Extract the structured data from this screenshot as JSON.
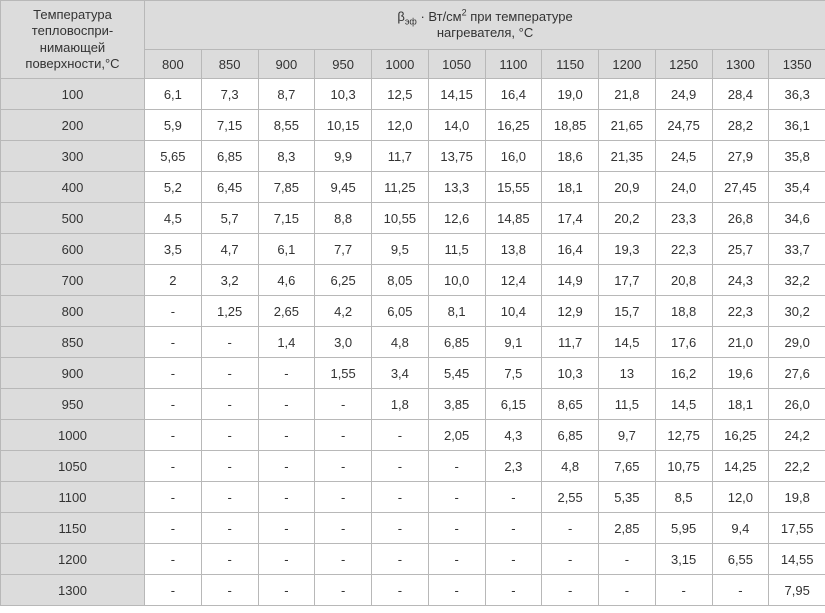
{
  "header": {
    "corner": "Температура тепловоспри-нимающей поверхности,°С",
    "span_l1": "β",
    "span_sub": "эф",
    "span_mid": " · Вт/см",
    "span_sup": "2",
    "span_l2a": " при температуре",
    "span_l2b": "нагревателя, °С"
  },
  "cols": [
    "800",
    "850",
    "900",
    "950",
    "1000",
    "1050",
    "1100",
    "1150",
    "1200",
    "1250",
    "1300",
    "1350"
  ],
  "rows": [
    {
      "t": "100",
      "v": [
        "6,1",
        "7,3",
        "8,7",
        "10,3",
        "12,5",
        "14,15",
        "16,4",
        "19,0",
        "21,8",
        "24,9",
        "28,4",
        "36,3"
      ]
    },
    {
      "t": "200",
      "v": [
        "5,9",
        "7,15",
        "8,55",
        "10,15",
        "12,0",
        "14,0",
        "16,25",
        "18,85",
        "21,65",
        "24,75",
        "28,2",
        "36,1"
      ]
    },
    {
      "t": "300",
      "v": [
        "5,65",
        "6,85",
        "8,3",
        "9,9",
        "11,7",
        "13,75",
        "16,0",
        "18,6",
        "21,35",
        "24,5",
        "27,9",
        "35,8"
      ]
    },
    {
      "t": "400",
      "v": [
        "5,2",
        "6,45",
        "7,85",
        "9,45",
        "11,25",
        "13,3",
        "15,55",
        "18,1",
        "20,9",
        "24,0",
        "27,45",
        "35,4"
      ]
    },
    {
      "t": "500",
      "v": [
        "4,5",
        "5,7",
        "7,15",
        "8,8",
        "10,55",
        "12,6",
        "14,85",
        "17,4",
        "20,2",
        "23,3",
        "26,8",
        "34,6"
      ]
    },
    {
      "t": "600",
      "v": [
        "3,5",
        "4,7",
        "6,1",
        "7,7",
        "9,5",
        "11,5",
        "13,8",
        "16,4",
        "19,3",
        "22,3",
        "25,7",
        "33,7"
      ]
    },
    {
      "t": "700",
      "v": [
        "2",
        "3,2",
        "4,6",
        "6,25",
        "8,05",
        "10,0",
        "12,4",
        "14,9",
        "17,7",
        "20,8",
        "24,3",
        "32,2"
      ]
    },
    {
      "t": "800",
      "v": [
        "-",
        "1,25",
        "2,65",
        "4,2",
        "6,05",
        "8,1",
        "10,4",
        "12,9",
        "15,7",
        "18,8",
        "22,3",
        "30,2"
      ]
    },
    {
      "t": "850",
      "v": [
        "-",
        "-",
        "1,4",
        "3,0",
        "4,8",
        "6,85",
        "9,1",
        "11,7",
        "14,5",
        "17,6",
        "21,0",
        "29,0"
      ]
    },
    {
      "t": "900",
      "v": [
        "-",
        "-",
        "-",
        "1,55",
        "3,4",
        "5,45",
        "7,5",
        "10,3",
        "13",
        "16,2",
        "19,6",
        "27,6"
      ]
    },
    {
      "t": "950",
      "v": [
        "-",
        "-",
        "-",
        "-",
        "1,8",
        "3,85",
        "6,15",
        "8,65",
        "11,5",
        "14,5",
        "18,1",
        "26,0"
      ]
    },
    {
      "t": "1000",
      "v": [
        "-",
        "-",
        "-",
        "-",
        "-",
        "2,05",
        "4,3",
        "6,85",
        "9,7",
        "12,75",
        "16,25",
        "24,2"
      ]
    },
    {
      "t": "1050",
      "v": [
        "-",
        "-",
        "-",
        "-",
        "-",
        "-",
        "2,3",
        "4,8",
        "7,65",
        "10,75",
        "14,25",
        "22,2"
      ]
    },
    {
      "t": "1100",
      "v": [
        "-",
        "-",
        "-",
        "-",
        "-",
        "-",
        "-",
        "2,55",
        "5,35",
        "8,5",
        "12,0",
        "19,8"
      ]
    },
    {
      "t": "1150",
      "v": [
        "-",
        "-",
        "-",
        "-",
        "-",
        "-",
        "-",
        "-",
        "2,85",
        "5,95",
        "9,4",
        "17,55"
      ]
    },
    {
      "t": "1200",
      "v": [
        "-",
        "-",
        "-",
        "-",
        "-",
        "-",
        "-",
        "-",
        "-",
        "3,15",
        "6,55",
        "14,55"
      ]
    },
    {
      "t": "1300",
      "v": [
        "-",
        "-",
        "-",
        "-",
        "-",
        "-",
        "-",
        "-",
        "-",
        "-",
        "-",
        "7,95"
      ]
    }
  ]
}
